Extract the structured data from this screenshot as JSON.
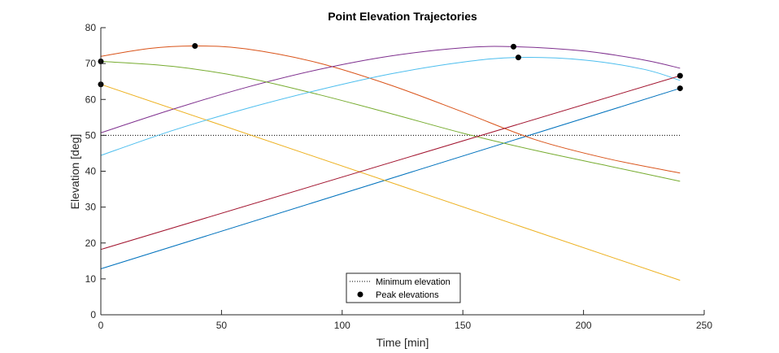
{
  "chart_data": {
    "type": "line",
    "title": "Point Elevation Trajectories",
    "xlabel": "Time [min]",
    "ylabel": "Elevation [deg]",
    "xlim": [
      0,
      250
    ],
    "ylim": [
      0,
      80
    ],
    "xticks": [
      0,
      50,
      100,
      150,
      200,
      250
    ],
    "yticks": [
      0,
      10,
      20,
      30,
      40,
      50,
      60,
      70,
      80
    ],
    "grid": false,
    "legend_position": "bottom-center",
    "legend": [
      "Minimum elevation",
      "Peak elevations"
    ],
    "minimum_elevation": 50,
    "series": [
      {
        "color": "#0072BD",
        "x": [
          0,
          240
        ],
        "y": [
          12.8,
          63.1
        ]
      },
      {
        "color": "#D95319",
        "x": [
          0,
          20,
          39,
          60,
          90,
          120,
          150,
          180,
          210,
          240
        ],
        "y": [
          72.0,
          74.2,
          74.9,
          74.1,
          70.2,
          64.0,
          56.5,
          48.8,
          43.5,
          39.5
        ]
      },
      {
        "color": "#EDB120",
        "x": [
          0,
          240
        ],
        "y": [
          64.2,
          9.6
        ]
      },
      {
        "color": "#7E2F8E",
        "x": [
          0,
          30,
          60,
          90,
          120,
          150,
          171,
          200,
          225,
          240
        ],
        "y": [
          50.7,
          57.3,
          63.3,
          68.3,
          72.1,
          74.4,
          74.7,
          73.5,
          71.0,
          68.7
        ]
      },
      {
        "color": "#77AC30",
        "x": [
          0,
          30,
          60,
          90,
          120,
          150,
          180,
          210,
          240
        ],
        "y": [
          70.6,
          69.2,
          66.1,
          61.4,
          56.1,
          50.6,
          45.8,
          41.5,
          37.2
        ]
      },
      {
        "color": "#4DBEEE",
        "x": [
          0,
          30,
          60,
          90,
          120,
          150,
          173,
          200,
          225,
          240
        ],
        "y": [
          44.4,
          51.4,
          57.4,
          62.6,
          67.1,
          70.4,
          71.7,
          71.0,
          68.4,
          65.3
        ]
      },
      {
        "color": "#A2142F",
        "x": [
          0,
          240
        ],
        "y": [
          18.2,
          66.6
        ]
      }
    ],
    "peak_points": [
      {
        "x": 0,
        "y": 64.2
      },
      {
        "x": 0,
        "y": 70.6
      },
      {
        "x": 39,
        "y": 74.9
      },
      {
        "x": 171,
        "y": 74.7
      },
      {
        "x": 173,
        "y": 71.7
      },
      {
        "x": 240,
        "y": 66.6
      },
      {
        "x": 240,
        "y": 63.1
      }
    ]
  }
}
